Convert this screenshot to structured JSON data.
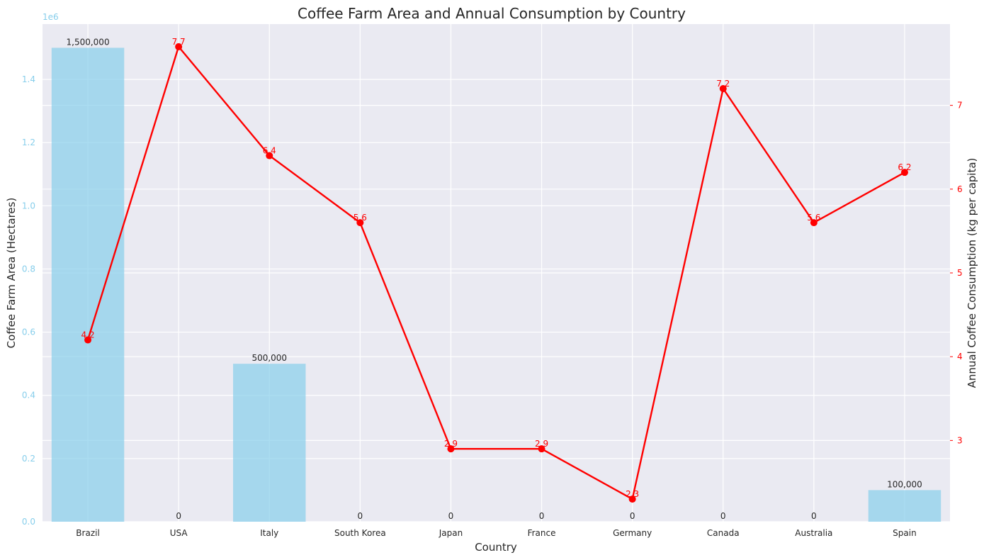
{
  "chart_data": {
    "type": "bar+line",
    "title": "Coffee Farm Area and Annual Consumption by Country",
    "xlabel": "Country",
    "ylabel_left": "Coffee Farm Area (Hectares)",
    "ylabel_right": "Annual Coffee Consumption (kg per capita)",
    "left_axis_offset_label": "1e6",
    "categories": [
      "Brazil",
      "USA",
      "Italy",
      "South Korea",
      "Japan",
      "France",
      "Germany",
      "Canada",
      "Australia",
      "Spain"
    ],
    "series": [
      {
        "values": [
          1500000,
          0,
          500000,
          0,
          0,
          0,
          0,
          0,
          0,
          100000
        ],
        "labels": [
          "1,500,000",
          "0",
          "500,000",
          "0",
          "0",
          "0",
          "0",
          "0",
          "0",
          "100,000"
        ],
        "kind": "bar",
        "axis": "left",
        "color": "#87CEEB"
      },
      {
        "values": [
          4.2,
          7.7,
          6.4,
          5.6,
          2.9,
          2.9,
          2.3,
          7.2,
          5.6,
          6.2
        ],
        "labels": [
          "4.2",
          "7.7",
          "6.4",
          "5.6",
          "2.9",
          "2.9",
          "2.3",
          "7.2",
          "5.6",
          "6.2"
        ],
        "kind": "line",
        "axis": "right",
        "color": "#FF0000"
      }
    ],
    "ylim_left": [
      0,
      1575000
    ],
    "ylim_right": [
      2.03,
      7.97
    ],
    "yticks_left": [
      0,
      200000,
      400000,
      600000,
      800000,
      1000000,
      1200000,
      1400000
    ],
    "yticks_left_labels": [
      "0.0",
      "0.2",
      "0.4",
      "0.6",
      "0.8",
      "1.0",
      "1.2",
      "1.4"
    ],
    "yticks_right": [
      3,
      4,
      5,
      6,
      7
    ],
    "yticks_right_labels": [
      "3",
      "4",
      "5",
      "6",
      "7"
    ],
    "grid": true,
    "colors": {
      "plot_bg": "#EAEAF2",
      "grid": "#FFFFFF",
      "bar": "#87CEEB",
      "line": "#FF0000",
      "left_axis": "#87CEEB",
      "right_axis": "#FF0000",
      "text": "#262626"
    }
  }
}
